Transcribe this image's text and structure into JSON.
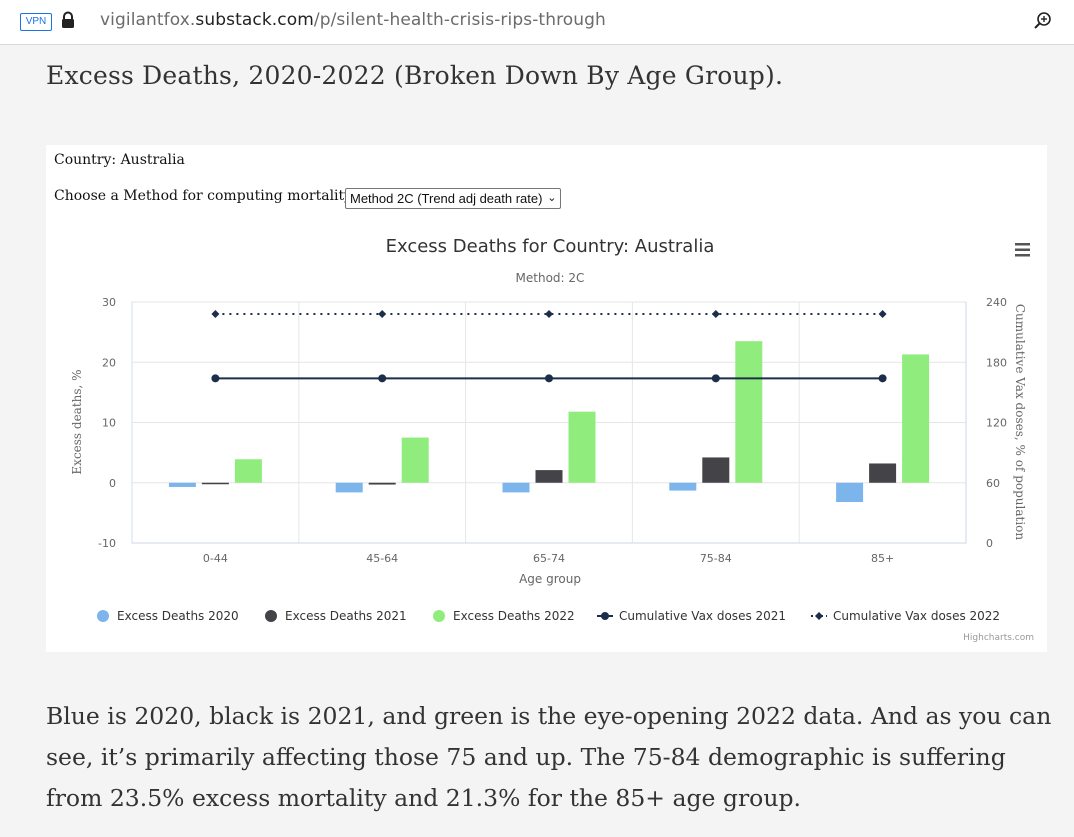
{
  "browser": {
    "vpn_badge": "VPN",
    "url_prefix": "vigilantfox.",
    "url_domain": "substack.com",
    "url_path": "/p/silent-health-crisis-rips-through"
  },
  "article": {
    "heading": "Excess Deaths, 2020-2022 (Broken Down By Age Group).",
    "paragraph": "Blue is 2020, black is 2021, and green is the eye-opening 2022 data. And as you can see, it’s primarily affecting those 75 and up. The 75-84 demographic is suffering from 23.5% excess mortality and 21.3% for the 85+ age group."
  },
  "controls": {
    "country_text": "Country: Australia",
    "method_label": "Choose a Method for computing mortality:",
    "method_selected": "Method 2C (Trend adj death rate)"
  },
  "chart_data": {
    "type": "bar",
    "title": "Excess Deaths for Country: Australia",
    "subtitle": "Method: 2C",
    "xlabel": "Age group",
    "ylabel": "Excess deaths, %",
    "y2label": "Cumulative Vax doses, % of population",
    "categories": [
      "0-44",
      "45-64",
      "65-74",
      "75-84",
      "85+"
    ],
    "ylim": [
      -10,
      30
    ],
    "y_ticks": [
      -10,
      0,
      10,
      20,
      30
    ],
    "y2lim": [
      0,
      240
    ],
    "y2_ticks": [
      0,
      60,
      120,
      180,
      240
    ],
    "grid": true,
    "legend_position": "bottom",
    "series": [
      {
        "name": "Excess Deaths 2020",
        "kind": "bar",
        "axis": "left",
        "color": "#7cb5ec",
        "values": [
          -0.7,
          -1.6,
          -1.6,
          -1.3,
          -3.2
        ]
      },
      {
        "name": "Excess Deaths 2021",
        "kind": "bar",
        "axis": "left",
        "color": "#434348",
        "values": [
          0.0,
          -0.3,
          2.1,
          4.2,
          3.2
        ]
      },
      {
        "name": "Excess Deaths 2022",
        "kind": "bar",
        "axis": "left",
        "color": "#90ed7d",
        "values": [
          3.9,
          7.5,
          11.8,
          23.5,
          21.3
        ]
      },
      {
        "name": "Cumulative Vax doses 2021",
        "kind": "line",
        "axis": "right",
        "color": "#1c2e4a",
        "values": [
          164,
          164,
          164,
          164,
          164
        ]
      },
      {
        "name": "Cumulative Vax doses 2022",
        "kind": "dotted",
        "axis": "right",
        "color": "#1c2e4a",
        "values": [
          228,
          228,
          228,
          228,
          228
        ]
      }
    ],
    "credits": "Highcharts.com"
  }
}
